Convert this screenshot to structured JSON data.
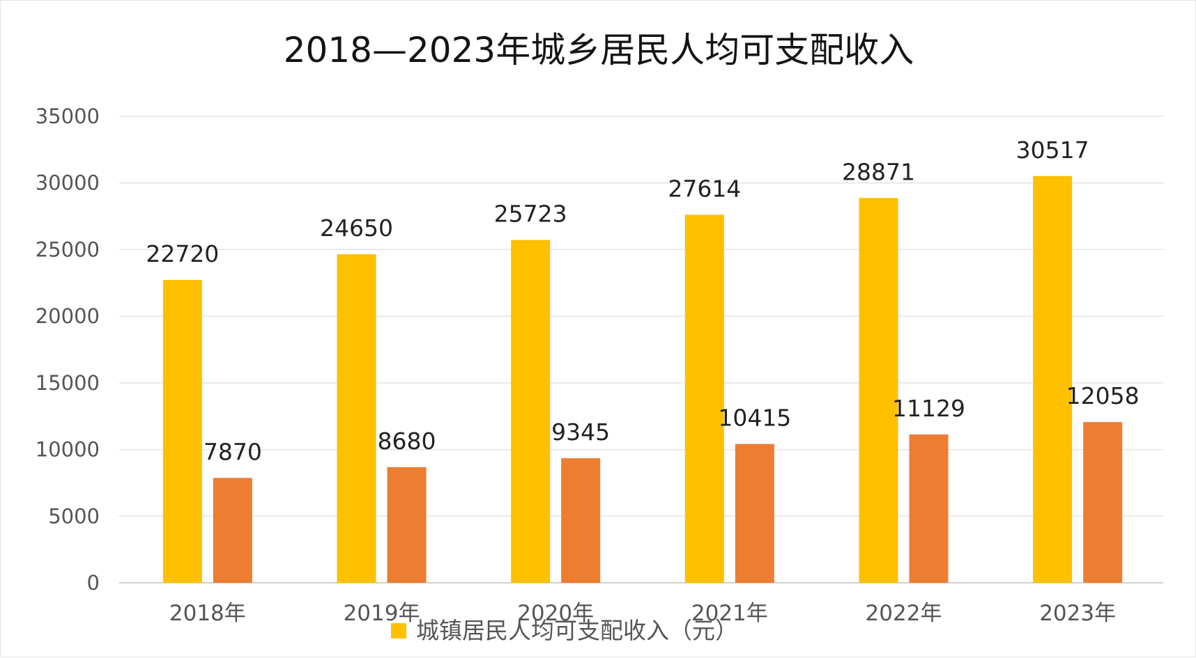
{
  "chart_data": {
    "type": "bar",
    "title": "2018—2023年城乡居民人均可支配收入",
    "xlabel": "",
    "ylabel": "",
    "categories": [
      "2018年",
      "2019年",
      "2020年",
      "2021年",
      "2022年",
      "2023年"
    ],
    "ylim": [
      0,
      35000
    ],
    "yticks": [
      0,
      5000,
      10000,
      15000,
      20000,
      25000,
      30000,
      35000
    ],
    "grid": true,
    "legend_position": "bottom",
    "series": [
      {
        "name": "城镇居民人均可支配收入（元）",
        "color": "#ffc000",
        "values": [
          22720,
          24650,
          25723,
          27614,
          28871,
          30517
        ],
        "in_legend": true
      },
      {
        "name": "",
        "color": "#ed7d31",
        "values": [
          7870,
          8680,
          9345,
          10415,
          11129,
          12058
        ],
        "in_legend": false
      }
    ],
    "data_labels": true
  }
}
